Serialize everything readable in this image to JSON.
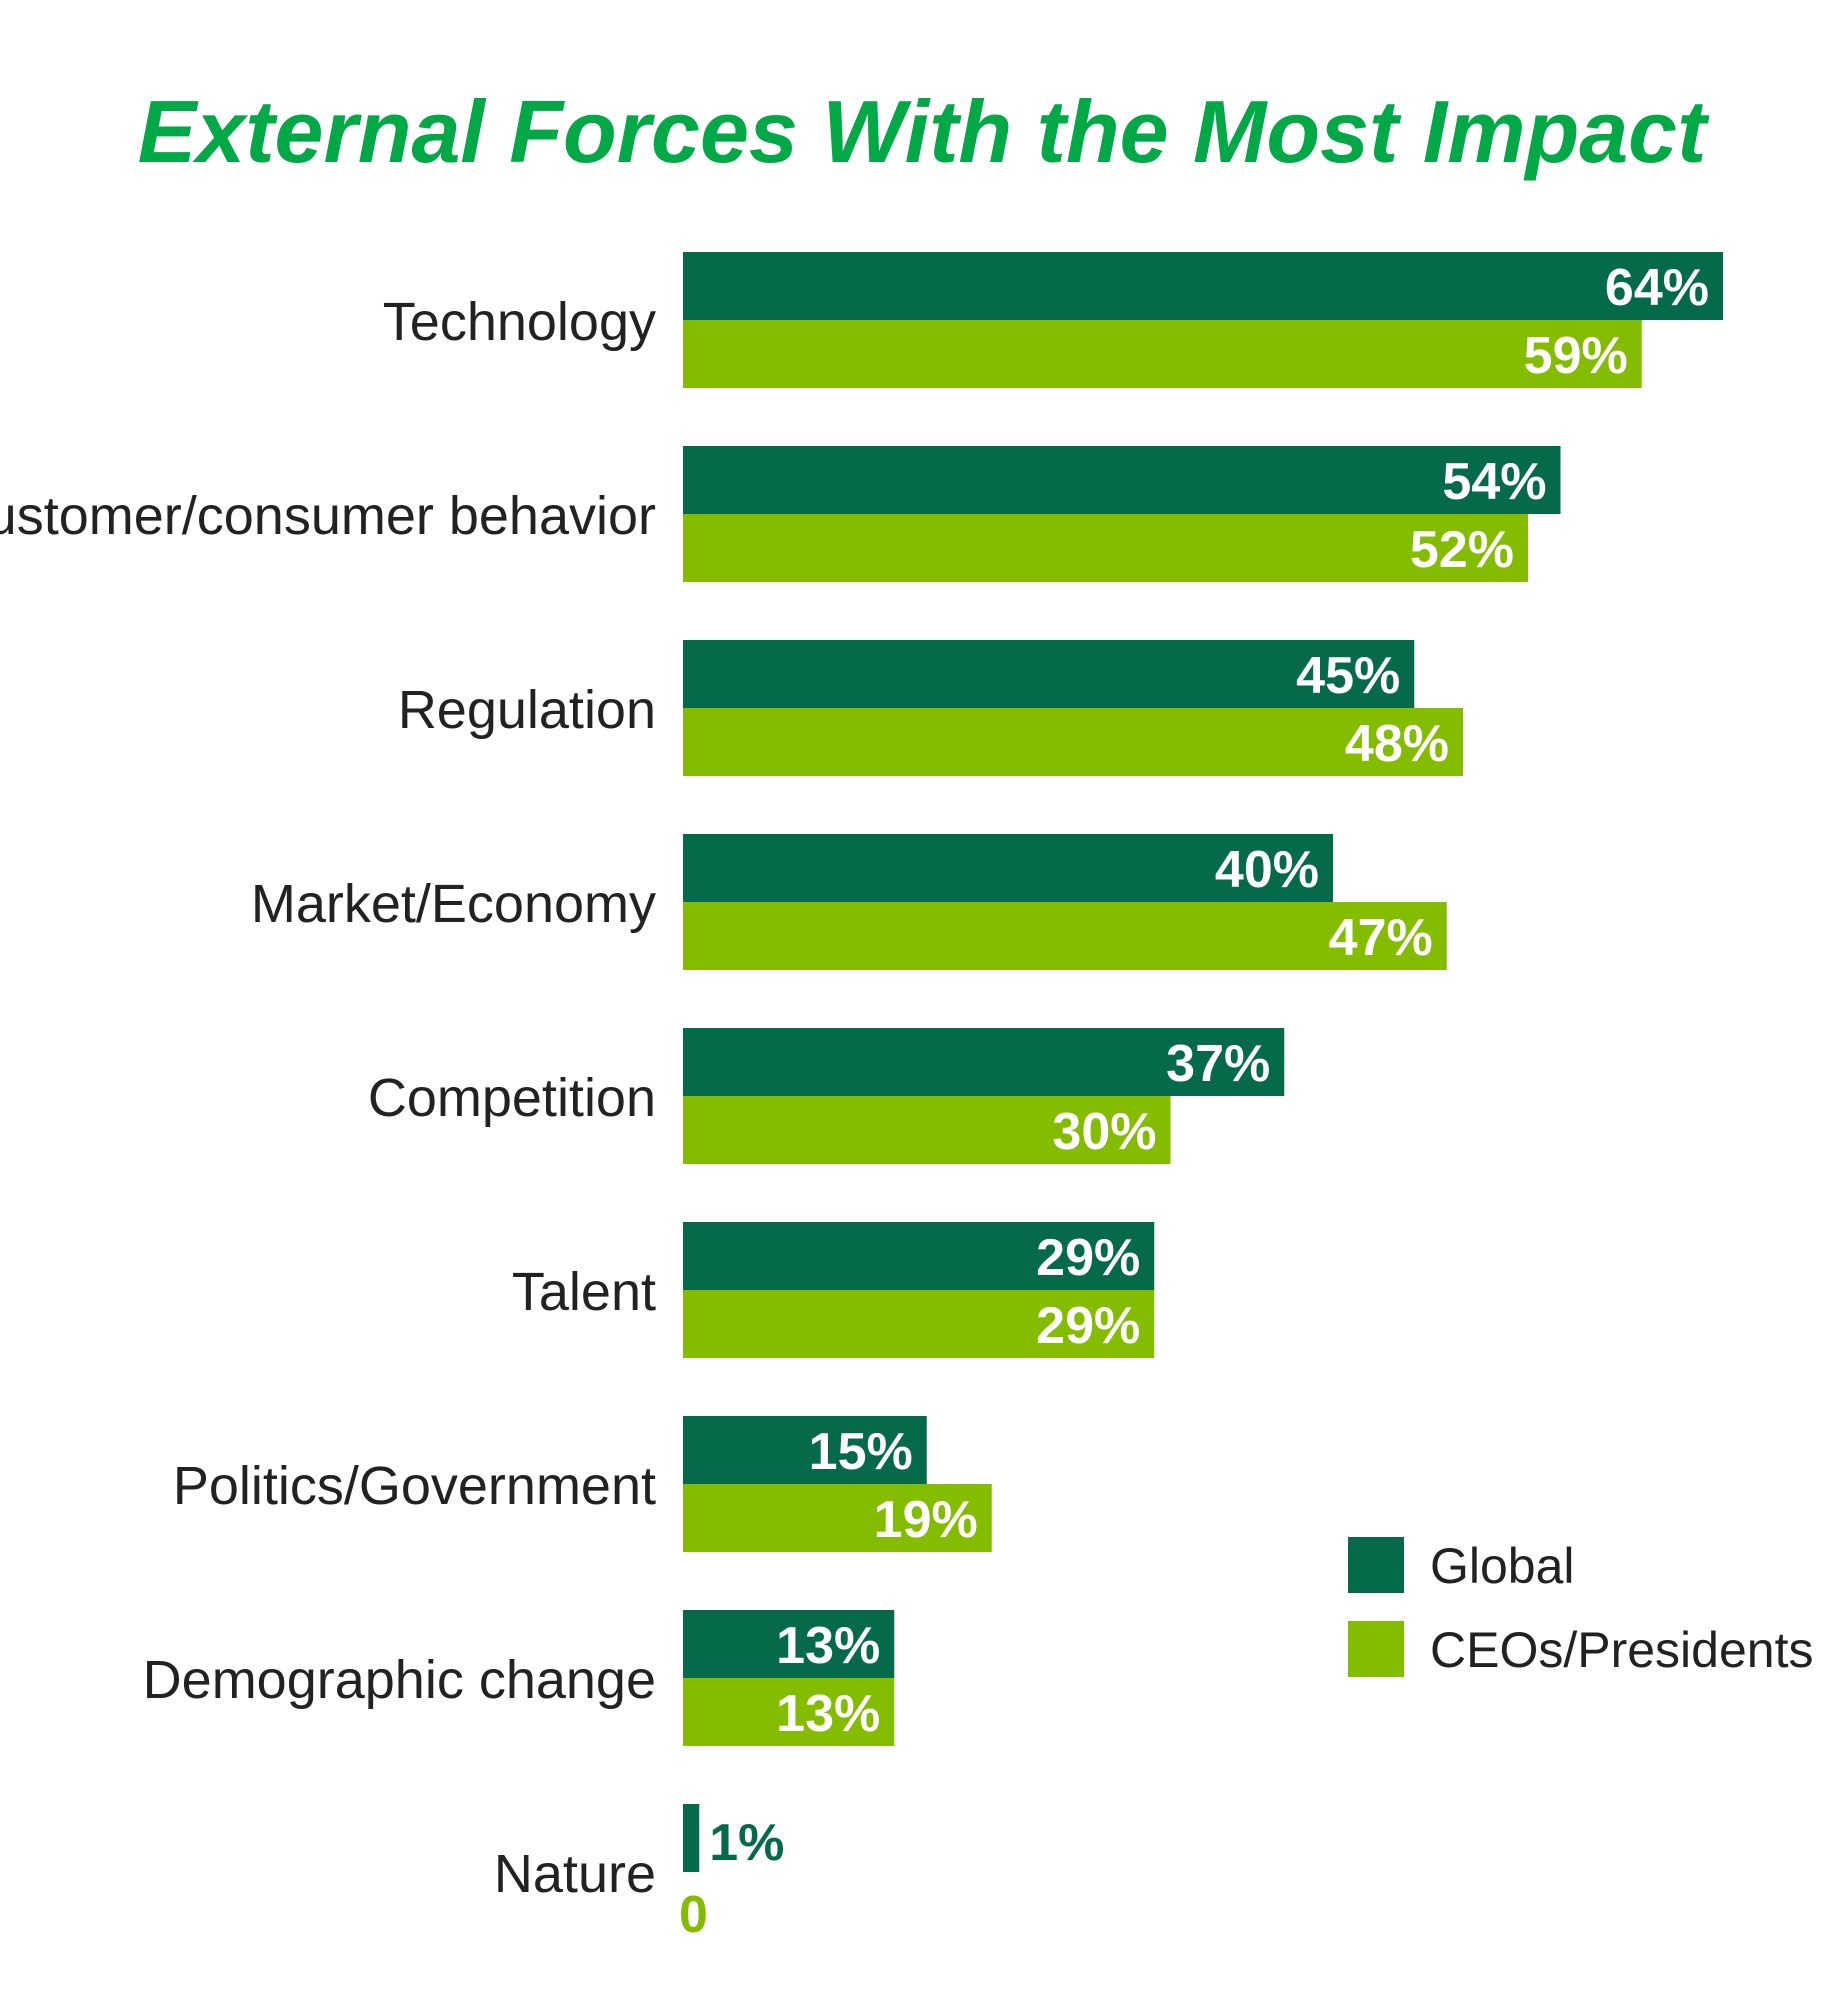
{
  "chart_data": {
    "type": "bar",
    "orientation": "horizontal",
    "title": "External Forces With the Most Impact",
    "categories": [
      "Technology",
      "Customer/consumer behavior",
      "Regulation",
      "Market/Economy",
      "Competition",
      "Talent",
      "Politics/Government",
      "Demographic change",
      "Nature"
    ],
    "series": [
      {
        "name": "Global",
        "color": "#046a4a",
        "values": [
          64,
          54,
          45,
          40,
          37,
          29,
          15,
          13,
          1
        ],
        "labels": [
          "64%",
          "54%",
          "45%",
          "40%",
          "37%",
          "29%",
          "15%",
          "13%",
          "1%"
        ]
      },
      {
        "name": "CEOs/Presidents",
        "color": "#84bd00",
        "values": [
          59,
          52,
          48,
          47,
          30,
          29,
          19,
          13,
          0
        ],
        "labels": [
          "59%",
          "52%",
          "48%",
          "47%",
          "30%",
          "29%",
          "19%",
          "13%",
          "0"
        ]
      }
    ],
    "value_unit": "%",
    "grid": false,
    "axes_visible": false,
    "legend_position": "right",
    "title_color": "#00a846"
  }
}
